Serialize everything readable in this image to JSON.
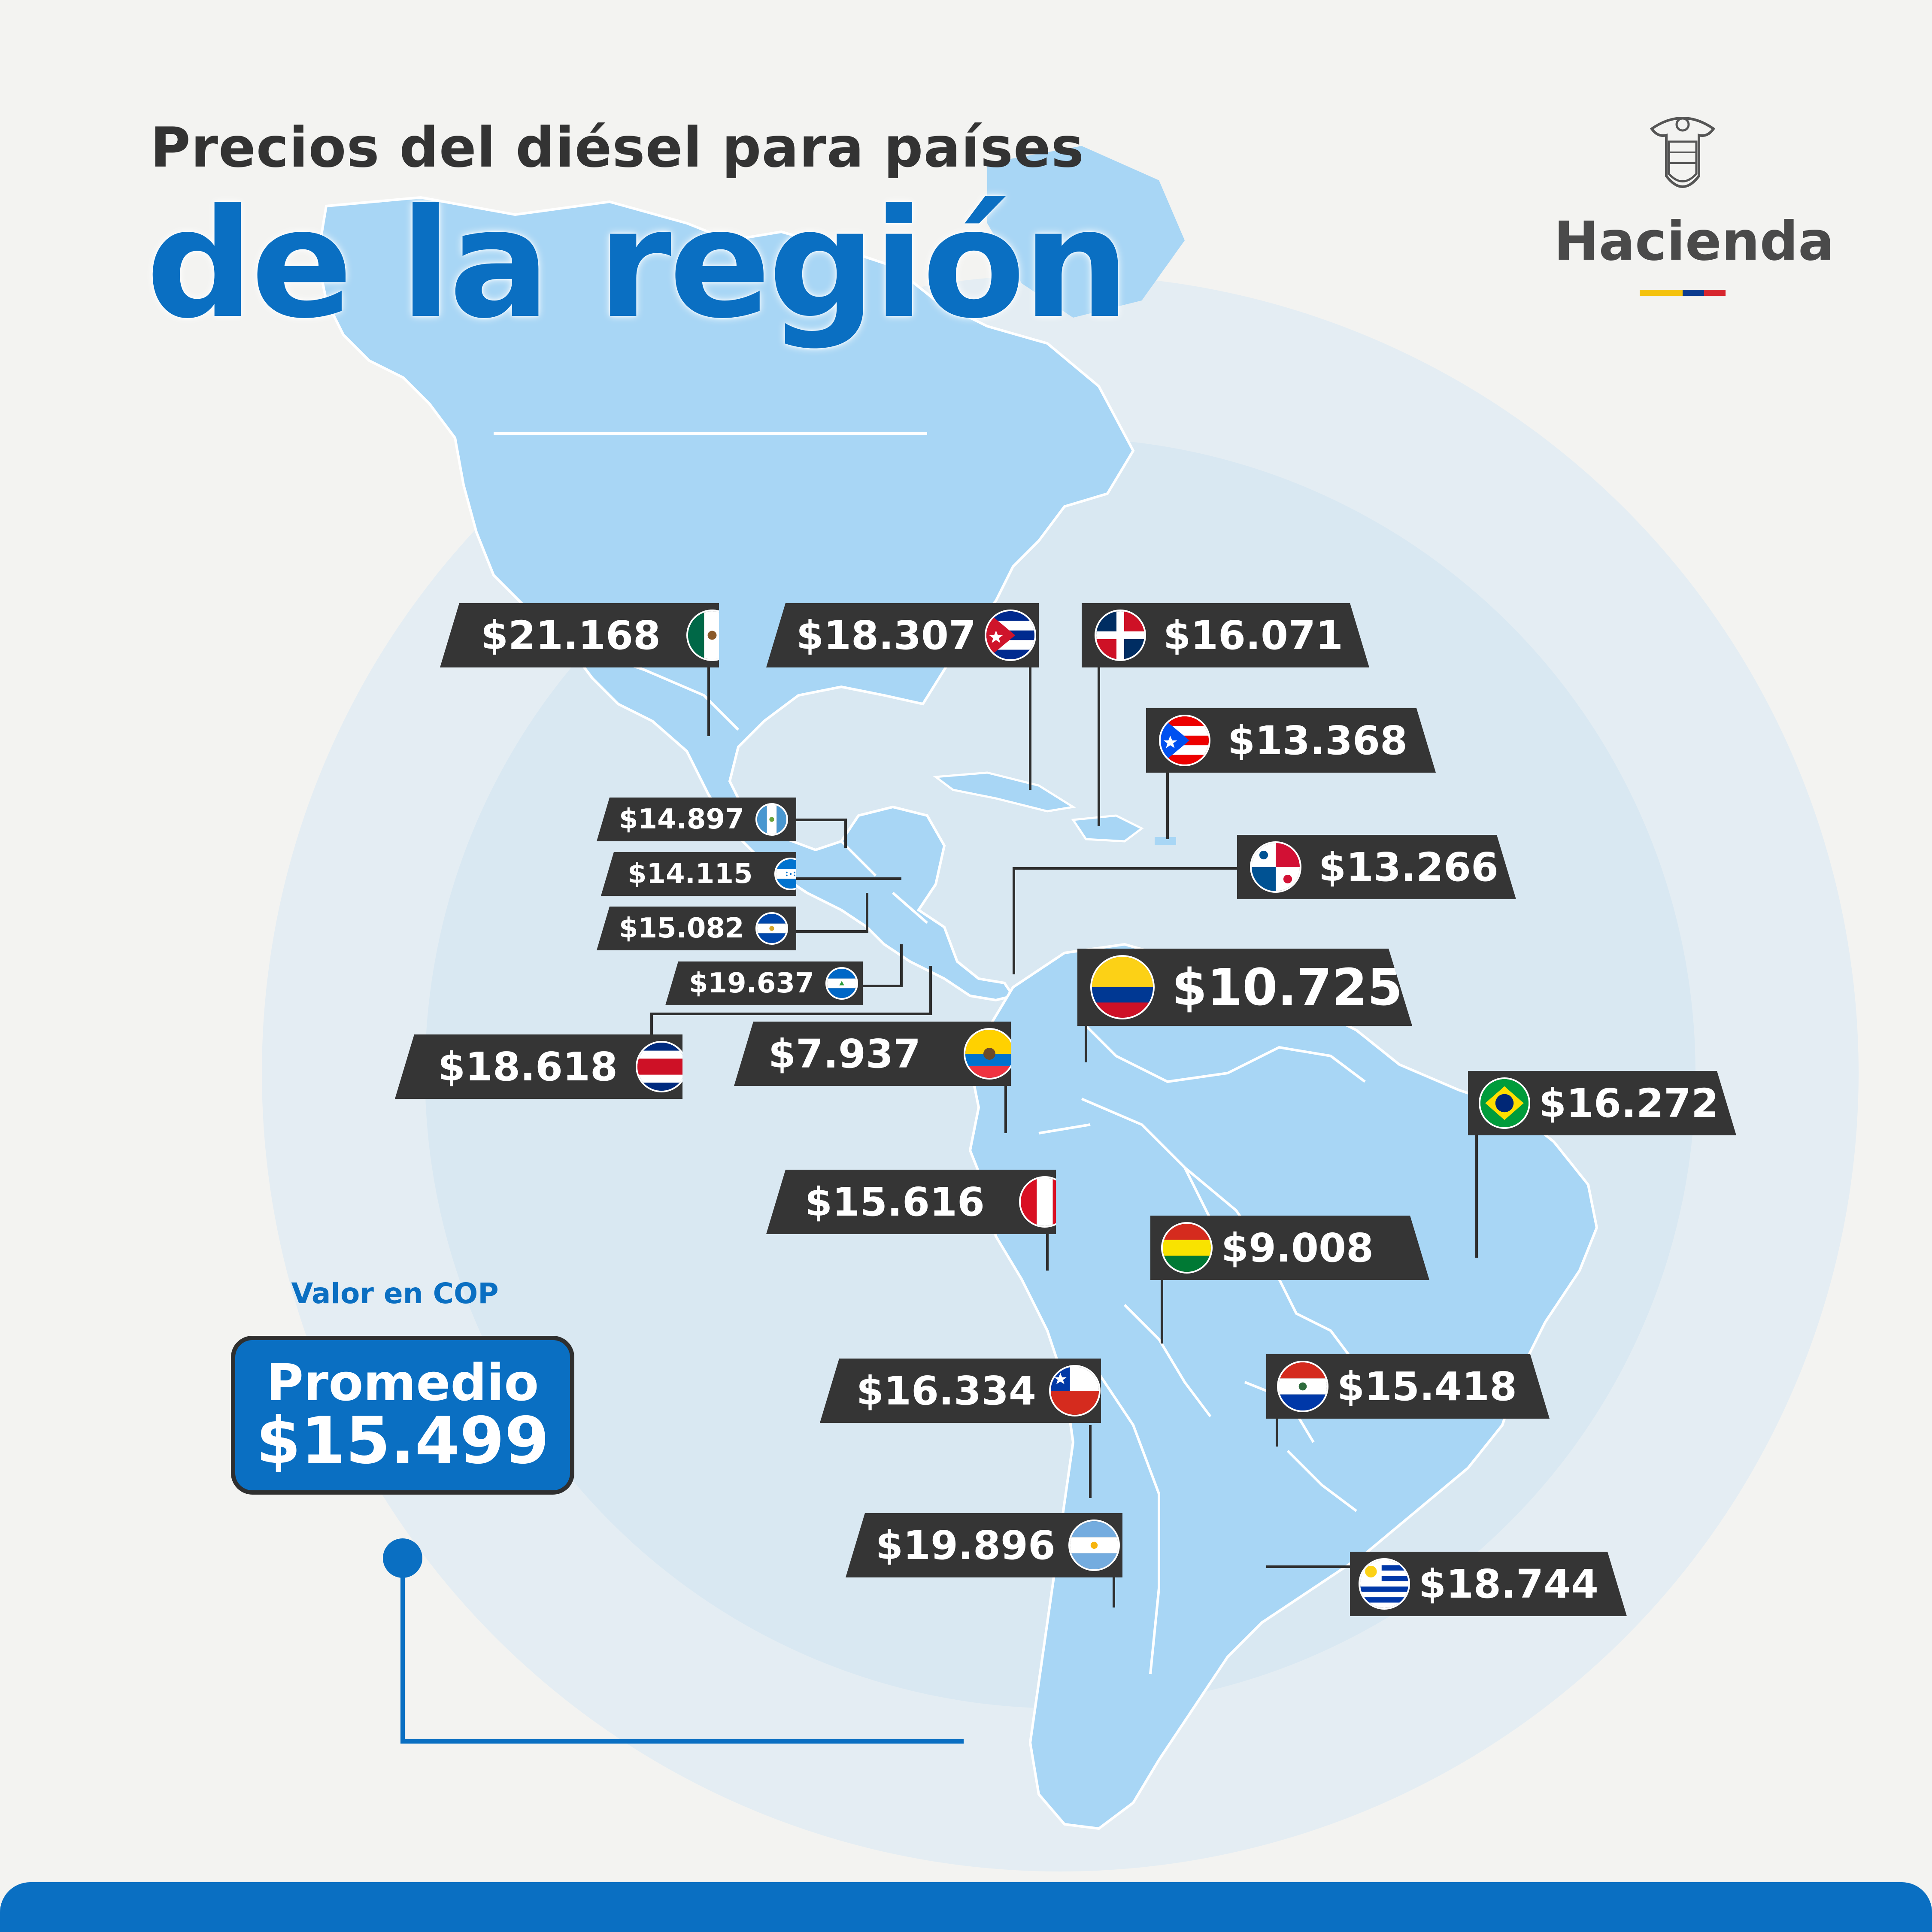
{
  "title_line1": "Precios del diésel para países",
  "title_line2": "de la región",
  "brand": {
    "name": "Hacienda",
    "bar_colors": [
      "#f4c20d",
      "#0b3b8f",
      "#d7262e"
    ]
  },
  "unit_note": "Valor en COP",
  "average": {
    "label": "Promedio",
    "value": "$15.499"
  },
  "colors": {
    "accent_blue": "#0a6fc2",
    "land": "#a8d6f5",
    "circle": "#e3edf4",
    "label_bg": "#353535",
    "title_dark": "#333333"
  },
  "countries": [
    {
      "id": "mexico",
      "name": "México",
      "price": "$21.168",
      "flag": "mexico-flag-icon"
    },
    {
      "id": "cuba",
      "name": "Cuba",
      "price": "$18.307",
      "flag": "cuba-flag-icon"
    },
    {
      "id": "dominican-republic",
      "name": "República Dominicana",
      "price": "$16.071",
      "flag": "dominican-republic-flag-icon"
    },
    {
      "id": "puerto-rico",
      "name": "Puerto Rico",
      "price": "$13.368",
      "flag": "puerto-rico-flag-icon"
    },
    {
      "id": "guatemala",
      "name": "Guatemala",
      "price": "$14.897",
      "flag": "guatemala-flag-icon"
    },
    {
      "id": "honduras",
      "name": "Honduras",
      "price": "$14.115",
      "flag": "honduras-flag-icon"
    },
    {
      "id": "el-salvador",
      "name": "El Salvador",
      "price": "$15.082",
      "flag": "el-salvador-flag-icon"
    },
    {
      "id": "nicaragua",
      "name": "Nicaragua",
      "price": "$19.637",
      "flag": "nicaragua-flag-icon"
    },
    {
      "id": "panama",
      "name": "Panamá",
      "price": "$13.266",
      "flag": "panama-flag-icon"
    },
    {
      "id": "colombia",
      "name": "Colombia",
      "price": "$10.725",
      "flag": "colombia-flag-icon"
    },
    {
      "id": "costa-rica",
      "name": "Costa Rica",
      "price": "$18.618",
      "flag": "costa-rica-flag-icon"
    },
    {
      "id": "ecuador",
      "name": "Ecuador",
      "price": "$7.937",
      "flag": "ecuador-flag-icon"
    },
    {
      "id": "brazil",
      "name": "Brasil",
      "price": "$16.272",
      "flag": "brazil-flag-icon"
    },
    {
      "id": "peru",
      "name": "Perú",
      "price": "$15.616",
      "flag": "peru-flag-icon"
    },
    {
      "id": "bolivia",
      "name": "Bolivia",
      "price": "$9.008",
      "flag": "bolivia-flag-icon"
    },
    {
      "id": "chile",
      "name": "Chile",
      "price": "$16.334",
      "flag": "chile-flag-icon"
    },
    {
      "id": "paraguay",
      "name": "Paraguay",
      "price": "$15.418",
      "flag": "paraguay-flag-icon"
    },
    {
      "id": "argentina",
      "name": "Argentina",
      "price": "$19.896",
      "flag": "argentina-flag-icon"
    },
    {
      "id": "uruguay",
      "name": "Uruguay",
      "price": "$18.744",
      "flag": "uruguay-flag-icon"
    }
  ]
}
